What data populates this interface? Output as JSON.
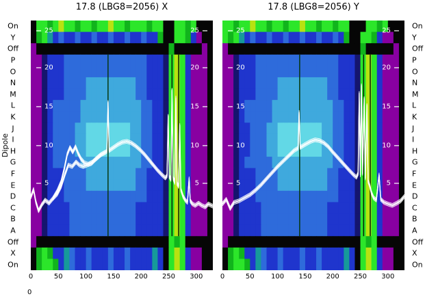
{
  "figure": {
    "ylabel": "Dipole",
    "row_labels": [
      "On",
      "Y",
      "Off",
      "P",
      "O",
      "N",
      "M",
      "L",
      "K",
      "J",
      "I",
      "H",
      "G",
      "F",
      "E",
      "D",
      "C",
      "B",
      "A",
      "Off",
      "X",
      "On"
    ],
    "corner_tick": "0",
    "background": "#ffffff",
    "text_color": "#000000",
    "trace_color": "#ffffff"
  },
  "palette": {
    "k": "#060606",
    "p": "#8800a1",
    "d": "#15156e",
    "b": "#1f35cd",
    "B": "#2e6bdb",
    "c": "#3fa9dd",
    "C": "#62d8e6",
    "t": "#169a9a",
    "g": "#11b41c",
    "G": "#2ce62a",
    "y": "#b8e211"
  },
  "chart_data": [
    {
      "type": "heatmap",
      "title": "17.8 (LBG8=2056) X",
      "x_ticks": [
        0,
        50,
        100,
        150,
        200,
        250,
        300
      ],
      "x_max": 330,
      "value_ticks": {
        "labels": [
          25,
          20,
          15,
          10,
          5
        ],
        "fracs": [
          0.041,
          0.189,
          0.345,
          0.501,
          0.652
        ]
      },
      "rows": [
        "kGGgGyGGgGGgGGyGGgGGGgGGkkGGgGkkk",
        "kgGtbBbbBbbBbbBbbBbbBbbgkkGGgbpkk",
        "pkkkkkkkkkkkkkkkkkkkkkkkkgkkkkkpk",
        "ppdbbbBBBBBBBBBBBBBBBbbbdGyGbpppk",
        "ppdbbbBBBBBBBBBBBBBBBbbbdGyGbpppk",
        "ppdbbbBBBBcccccccccBBbbbdGyGbpppk",
        "ppdbbbBBBBcccccccccBBbbbdGyGbpppk",
        "ppdbBBBBBcccccccccccBBbbdGyGbpppk",
        "ppdbBBBBBcccccccccccBBbbdGyGbpppk",
        "ppdbBBBBccCCCCCCCCccBBbbdGyGbpppk",
        "ppdbBBBBccCCCCCCCCccBBbbdGyGbpppk",
        "ppdbBBBBccCCCCCCCCccBBbbdGyGbpppk",
        "ppdbBBBBBcccccccccccBBbbdGyGbpppk",
        "ppdbbbBBBBcccccccccBBbbbdGyGbpppk",
        "ppdbbbBBBBcccccccccBBbbbdGyGbpppk",
        "ppdbbbBBBBBBBBBBBBBBBbbbdGyGbpppk",
        "ppdbbbbBBBBBBBBBBBBbbbbbdGyGbpppk",
        "ppdbbbbBBBBBBBBBBBBbbbbbdGyGbpppk",
        "ppdbbbbBBBBBBBBBBBBbbbbbdGyGbpppk",
        "pkkkkkkkkkkkkkkkkkkkkkkkkGgGkkkkk",
        "kgGgbbtBbbBbbbBbbBbbbbtbkGyGbppkk",
        "kgGGgbtBbbBbbbBbbBbbbbtbkGyGbppkk"
      ],
      "vlines": [
        {
          "x": 140,
          "color": "#06380e"
        },
        {
          "x": 256,
          "color": "#032008"
        },
        {
          "x": 268,
          "color": "#032008"
        }
      ],
      "traces": [
        [
          [
            0,
            3.2
          ],
          [
            5,
            4.2
          ],
          [
            9,
            2.6
          ],
          [
            14,
            1.4
          ],
          [
            20,
            2.2
          ],
          [
            26,
            2.8
          ],
          [
            33,
            2.4
          ],
          [
            40,
            3.0
          ],
          [
            48,
            3.6
          ],
          [
            55,
            4.6
          ],
          [
            62,
            6.2
          ],
          [
            68,
            7.4
          ],
          [
            75,
            7.2
          ],
          [
            82,
            7.8
          ],
          [
            88,
            7.4
          ],
          [
            95,
            7.2
          ],
          [
            102,
            7.4
          ],
          [
            110,
            7.6
          ],
          [
            118,
            8.2
          ],
          [
            126,
            8.7
          ],
          [
            133,
            9.0
          ],
          [
            138,
            9.2
          ],
          [
            140,
            15.6
          ],
          [
            142,
            9.3
          ],
          [
            150,
            9.7
          ],
          [
            158,
            10.1
          ],
          [
            166,
            10.4
          ],
          [
            174,
            10.5
          ],
          [
            182,
            10.3
          ],
          [
            190,
            9.9
          ],
          [
            198,
            9.4
          ],
          [
            206,
            8.8
          ],
          [
            214,
            8.1
          ],
          [
            222,
            7.4
          ],
          [
            230,
            6.7
          ],
          [
            238,
            6.1
          ],
          [
            244,
            5.7
          ],
          [
            247,
            6.0
          ],
          [
            249,
            13.8
          ],
          [
            251,
            5.9
          ],
          [
            254,
            5.5
          ],
          [
            256,
            17.2
          ],
          [
            258,
            5.7
          ],
          [
            261,
            5.1
          ],
          [
            263,
            16.2
          ],
          [
            265,
            5.0
          ],
          [
            268,
            4.6
          ],
          [
            270,
            12.6
          ],
          [
            272,
            4.2
          ],
          [
            276,
            3.3
          ],
          [
            280,
            2.8
          ],
          [
            284,
            2.5
          ],
          [
            287,
            5.6
          ],
          [
            289,
            2.7
          ],
          [
            293,
            2.3
          ],
          [
            298,
            2.1
          ],
          [
            304,
            2.4
          ],
          [
            310,
            2.1
          ],
          [
            316,
            1.9
          ],
          [
            322,
            2.3
          ],
          [
            330,
            2.0
          ]
        ],
        [
          [
            40,
            3.0
          ],
          [
            48,
            4.0
          ],
          [
            55,
            5.2
          ],
          [
            61,
            7.0
          ],
          [
            66,
            8.8
          ],
          [
            71,
            9.7
          ],
          [
            76,
            9.1
          ],
          [
            81,
            9.8
          ],
          [
            86,
            8.9
          ],
          [
            91,
            8.2
          ],
          [
            97,
            7.7
          ],
          [
            104,
            7.5
          ],
          [
            112,
            7.8
          ],
          [
            120,
            8.3
          ],
          [
            128,
            8.8
          ],
          [
            136,
            9.1
          ]
        ]
      ]
    },
    {
      "type": "heatmap",
      "title": "17.8 (LBG8=2056) Y",
      "x_ticks": [
        0,
        50,
        100,
        150,
        200,
        250,
        300
      ],
      "x_max": 330,
      "value_ticks": {
        "labels": [
          25,
          20,
          15,
          10,
          5
        ],
        "fracs": [
          0.041,
          0.189,
          0.345,
          0.501,
          0.652
        ]
      },
      "rows": [
        "GGgGGyGGgGGgGGyGGgGGgGGkkkGGgGkkk",
        "GgGtbBbbBbbBbbBbbBbbBbgkkGGgbppkk",
        "pkkkkkkkkkkkkkkkkkkkkkkkkgkkkkkpk",
        "ppdbbbBBBBBBBBBBBBBBBbbbdGyGbpppk",
        "ppdbbbBBBBBBBBBBBBBBBbbbdGyGbpppk",
        "ppdbbbBBBBcccccccccBBbbbdGyGbpppk",
        "ppdbbbBBBBcccccccccBBbbbdGyGbpppk",
        "ppdbBBBBBcccccccccccBBbbdGyGbpppk",
        "ppdbBBBBBcccccccccccBBbbdGyGbpppk",
        "ppdbbBBBccCCCCCCCCccBBbbdGyGbpppk",
        "ppdbbBBBccCCCCCCCCccBBbbdGyGbpppk",
        "ppdbbBBBccCCCCCCCCccBBbbdGyGbpppk",
        "ppdbBBBBBcccccccccccBBbbdGyGbpppk",
        "ppdbbbBBBBcccccccccBBbbbdGyGbpppk",
        "ppdbbbBBBBcccccccccBBbbbdGyGbpppk",
        "ppdbbbBBBBBBBBBBBBBBBbbbdGyGbpppk",
        "ppdbbbbBBBBBBBBBBBBbbbbbdGyGbpppk",
        "ppdbbbbBBBBBBBBBBBBbbbbbdGyGbpppk",
        "ppdbbbbBBBBBBBBBBBBbbbbbdGyGbpppk",
        "pkkkkkkkkkkkkkkkkkkkkkkkkGgGkkkkk",
        "kgGgbbtBbbBbbbBbbBbbbbtbkGyGbppkk",
        "kgGGgbtBbbBbbbBbbBbbbbtbkGyGbppkk"
      ],
      "vlines": [
        {
          "x": 140,
          "color": "#06380e"
        },
        {
          "x": 256,
          "color": "#032008"
        },
        {
          "x": 268,
          "color": "#032008"
        }
      ],
      "traces": [
        [
          [
            0,
            2.3
          ],
          [
            7,
            2.9
          ],
          [
            14,
            1.7
          ],
          [
            21,
            2.5
          ],
          [
            30,
            2.7
          ],
          [
            40,
            3.1
          ],
          [
            50,
            3.5
          ],
          [
            60,
            4.1
          ],
          [
            70,
            4.8
          ],
          [
            80,
            5.6
          ],
          [
            90,
            6.4
          ],
          [
            100,
            7.2
          ],
          [
            110,
            7.9
          ],
          [
            120,
            8.6
          ],
          [
            130,
            9.3
          ],
          [
            137,
            9.6
          ],
          [
            139,
            14.3
          ],
          [
            141,
            9.7
          ],
          [
            150,
            10.1
          ],
          [
            160,
            10.5
          ],
          [
            168,
            10.7
          ],
          [
            176,
            10.6
          ],
          [
            184,
            10.3
          ],
          [
            192,
            9.8
          ],
          [
            200,
            9.1
          ],
          [
            210,
            8.3
          ],
          [
            220,
            7.5
          ],
          [
            230,
            6.7
          ],
          [
            238,
            6.1
          ],
          [
            243,
            5.8
          ],
          [
            246,
            6.3
          ],
          [
            248,
            16.8
          ],
          [
            250,
            6.1
          ],
          [
            252,
            17.8
          ],
          [
            254,
            6.3
          ],
          [
            257,
            16.1
          ],
          [
            259,
            5.7
          ],
          [
            262,
            15.2
          ],
          [
            264,
            5.3
          ],
          [
            267,
            4.7
          ],
          [
            270,
            3.8
          ],
          [
            274,
            3.1
          ],
          [
            279,
            2.8
          ],
          [
            284,
            6.1
          ],
          [
            287,
            2.9
          ],
          [
            293,
            2.5
          ],
          [
            300,
            2.3
          ],
          [
            308,
            2.1
          ],
          [
            316,
            2.4
          ],
          [
            323,
            2.7
          ],
          [
            330,
            3.3
          ]
        ]
      ]
    }
  ]
}
